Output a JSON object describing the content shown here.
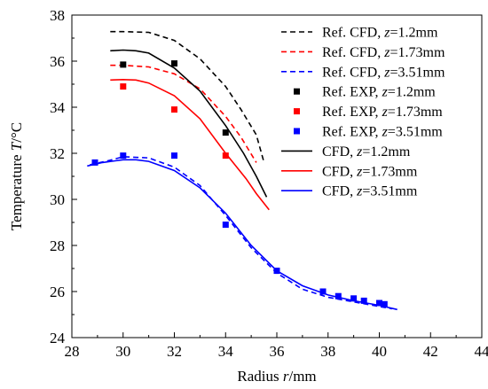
{
  "chart_data": {
    "type": "line",
    "xlabel": {
      "main": "Radius ",
      "var": "r",
      "unit": "/mm"
    },
    "ylabel": {
      "main": "Temperature ",
      "var": "T",
      "unit": "/°C"
    },
    "xlim": [
      28,
      44
    ],
    "ylim": [
      24,
      38
    ],
    "xticks": [
      "28",
      "30",
      "32",
      "34",
      "36",
      "38",
      "40",
      "42",
      "44"
    ],
    "yticks": [
      "24",
      "26",
      "28",
      "30",
      "32",
      "34",
      "36",
      "38"
    ],
    "grid": false,
    "legend_position": "top-right",
    "series": [
      {
        "name": "Ref. CFD, ",
        "zlabel": "z",
        "zval": "=1.2mm",
        "kind": "line",
        "dash": true,
        "color": "#000000",
        "x": [
          29.5,
          30,
          31,
          32,
          33,
          34,
          34.6,
          35.2,
          35.5
        ],
        "y": [
          37.28,
          37.28,
          37.25,
          36.9,
          36.1,
          34.9,
          33.9,
          32.8,
          31.6
        ]
      },
      {
        "name": "Ref. CFD, ",
        "zlabel": "z",
        "zval": "=1.73mm",
        "kind": "line",
        "dash": true,
        "color": "#ff0000",
        "x": [
          29.5,
          30,
          31,
          32,
          33,
          34,
          34.6,
          35.2
        ],
        "y": [
          35.82,
          35.82,
          35.75,
          35.45,
          34.8,
          33.6,
          32.7,
          31.6
        ]
      },
      {
        "name": "Ref. CFD, ",
        "zlabel": "z",
        "zval": "=3.51mm",
        "kind": "line",
        "dash": true,
        "color": "#0000ff",
        "x": [
          28.7,
          29.5,
          30,
          31,
          32,
          33,
          34,
          35,
          36,
          37,
          38,
          39,
          40,
          40.5
        ],
        "y": [
          31.5,
          31.7,
          31.85,
          31.8,
          31.4,
          30.6,
          29.3,
          27.9,
          26.8,
          26.1,
          25.75,
          25.55,
          25.35,
          25.25
        ]
      },
      {
        "name": "Ref. EXP, ",
        "zlabel": "z",
        "zval": "=1.2mm",
        "kind": "scatter",
        "color": "#000000",
        "x": [
          30,
          32,
          34
        ],
        "y": [
          35.85,
          35.9,
          32.9
        ]
      },
      {
        "name": "Ref. EXP, ",
        "zlabel": "z",
        "zval": "=1.73mm",
        "kind": "scatter",
        "color": "#ff0000",
        "x": [
          30,
          32,
          34
        ],
        "y": [
          34.9,
          33.9,
          31.9
        ]
      },
      {
        "name": "Ref. EXP, ",
        "zlabel": "z",
        "zval": "=3.51mm",
        "kind": "scatter",
        "color": "#0000ff",
        "x": [
          28.9,
          30,
          32,
          34,
          36,
          37.8,
          38.4,
          39,
          39.4,
          40,
          40.2
        ],
        "y": [
          31.6,
          31.9,
          31.9,
          28.9,
          26.9,
          26.0,
          25.8,
          25.7,
          25.6,
          25.5,
          25.45
        ]
      },
      {
        "name": "CFD, ",
        "zlabel": "z",
        "zval": "=1.2mm",
        "kind": "line",
        "dash": false,
        "color": "#000000",
        "x": [
          29.5,
          30,
          30.5,
          31,
          32,
          33,
          34,
          34.7,
          35.2,
          35.6
        ],
        "y": [
          36.45,
          36.48,
          36.45,
          36.35,
          35.7,
          34.7,
          33.2,
          32.0,
          31.0,
          30.1
        ]
      },
      {
        "name": "CFD, ",
        "zlabel": "z",
        "zval": "=1.73mm",
        "kind": "line",
        "dash": false,
        "color": "#ff0000",
        "x": [
          29.5,
          30,
          30.5,
          31,
          32,
          33,
          34,
          34.8,
          35.2,
          35.7
        ],
        "y": [
          35.18,
          35.2,
          35.18,
          35.05,
          34.5,
          33.5,
          32.0,
          30.9,
          30.25,
          29.55
        ]
      },
      {
        "name": "CFD, ",
        "zlabel": "z",
        "zval": "=3.51mm",
        "kind": "line",
        "dash": false,
        "color": "#0000ff",
        "x": [
          28.6,
          29.2,
          30,
          30.5,
          31,
          32,
          33,
          34,
          35,
          36,
          37,
          38,
          39,
          40,
          40.7
        ],
        "y": [
          31.45,
          31.6,
          31.72,
          31.72,
          31.65,
          31.25,
          30.5,
          29.4,
          28.0,
          26.9,
          26.25,
          25.85,
          25.6,
          25.4,
          25.22
        ]
      }
    ]
  }
}
